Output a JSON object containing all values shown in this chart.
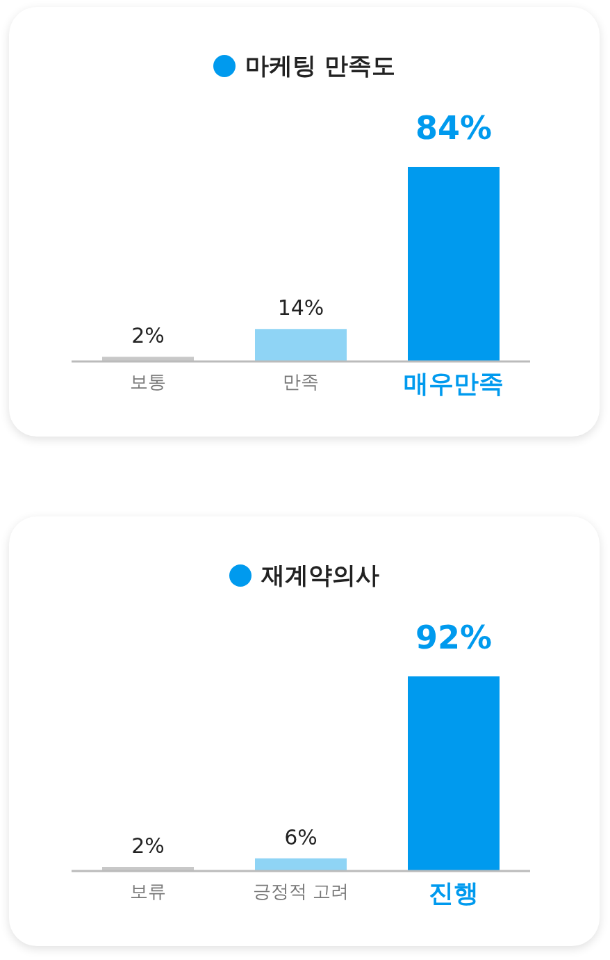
{
  "chart_data": [
    {
      "type": "bar",
      "title": "마케팅 만족도",
      "categories": [
        "보통",
        "만족",
        "매우만족"
      ],
      "values": [
        2,
        14,
        84
      ],
      "value_labels": [
        "2%",
        "14%",
        "84%"
      ],
      "colors": [
        "#c8c8c8",
        "#8fd4f5",
        "#009aee"
      ]
    },
    {
      "type": "bar",
      "title": "재계약의사",
      "categories": [
        "보류",
        "긍정적 고려",
        "진행"
      ],
      "values": [
        2,
        6,
        92
      ],
      "value_labels": [
        "2%",
        "6%",
        "92%"
      ],
      "colors": [
        "#c8c8c8",
        "#8fd4f5",
        "#009aee"
      ]
    }
  ]
}
